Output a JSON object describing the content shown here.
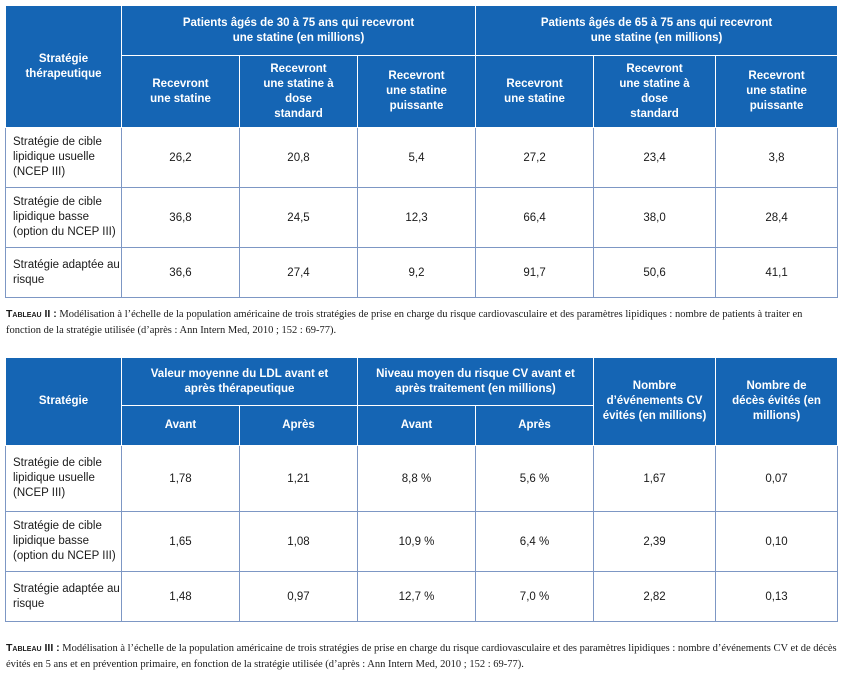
{
  "table1": {
    "strategy_header": "Stratégie thérapeutique",
    "group_a": "Patients âgés de 30 à 75 ans qui recevront une statine (en millions)",
    "group_b": "Patients âgés de 65 à 75 ans qui recevront une statine (en millions)",
    "col_headers": [
      "Recevront une statine",
      "Recevront une statine à dose standard",
      "Recevront une statine puissante",
      "Recevront une statine",
      "Recevront une statine à dose standard",
      "Recevront une statine puissante"
    ],
    "rows": [
      {
        "label": "Stratégie de cible lipidique usuelle (NCEP III)",
        "values": [
          "26,2",
          "20,8",
          "5,4",
          "27,2",
          "23,4",
          "3,8"
        ]
      },
      {
        "label": "Stratégie de cible lipidique basse (option du NCEP III)",
        "values": [
          "36,8",
          "24,5",
          "12,3",
          "66,4",
          "38,0",
          "28,4"
        ]
      },
      {
        "label": "Stratégie adaptée au risque",
        "values": [
          "36,6",
          "27,4",
          "9,2",
          "91,7",
          "50,6",
          "41,1"
        ]
      }
    ],
    "caption_tag": "Tableau II :",
    "caption_text": "Modélisation à l’échelle de la population américaine de trois stratégies de prise en charge du risque cardiovasculaire et des paramètres lipidiques : nombre de patients à traiter en fonction de la stratégie utilisée (d’après : Ann Intern Med, 2010 ; 152 : 69-77)."
  },
  "table2": {
    "strategy_header": "Stratégie",
    "group_ldl": "Valeur moyenne du LDL avant et après thérapeutique",
    "group_risk": "Niveau moyen du risque CV avant et après traitement (en millions)",
    "col_events": "Nombre d’événements CV évités (en millions)",
    "col_deaths": "Nombre de décès évités (en millions)",
    "sub_before": "Avant",
    "sub_after": "Après",
    "rows": [
      {
        "label": "Stratégie de cible lipidique usuelle (NCEP III)",
        "values": [
          "1,78",
          "1,21",
          "8,8 %",
          "5,6 %",
          "1,67",
          "0,07"
        ]
      },
      {
        "label": "Stratégie de cible lipidique basse (option du NCEP III)",
        "values": [
          "1,65",
          "1,08",
          "10,9 %",
          "6,4 %",
          "2,39",
          "0,10"
        ]
      },
      {
        "label": "Stratégie adaptée au risque",
        "values": [
          "1,48",
          "0,97",
          "12,7 %",
          "7,0 %",
          "2,82",
          "0,13"
        ]
      }
    ],
    "caption_tag": "Tableau III :",
    "caption_text": "Modélisation à l’échelle de la population américaine de trois stratégies de prise en charge du risque cardiovasculaire et des paramètres lipidiques : nombre d’événements CV et de décès évités en 5 ans et en prévention primaire, en fonction de la stratégie utilisée (d’après : Ann Intern Med, 2010 ; 152 : 69-77)."
  }
}
